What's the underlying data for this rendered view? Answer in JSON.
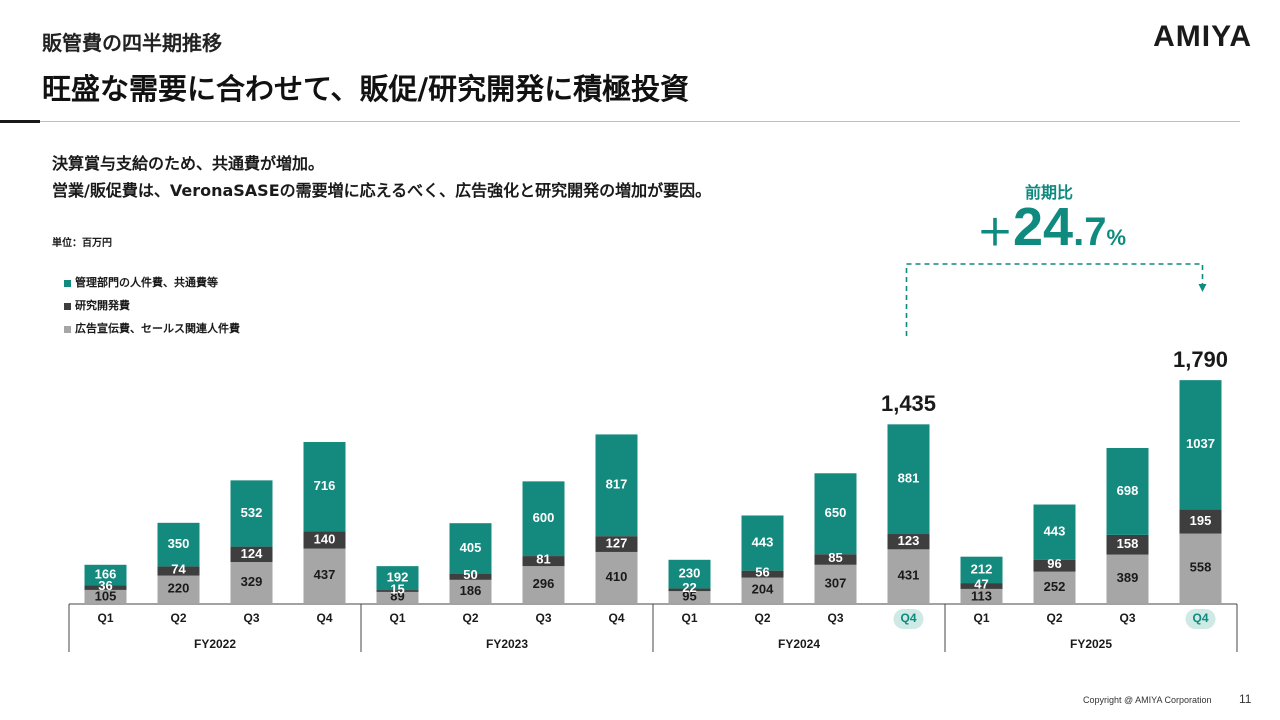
{
  "header": {
    "section_label": "販管費の四半期推移",
    "headline": "旺盛な需要に合わせて、販促/研究開発に積極投資",
    "logo": "AMIYA"
  },
  "description": {
    "line1": "決算賞与支給のため、共通費が増加。",
    "line2": "営業/販促費は、VeronaSASEの需要増に応えるべく、広告強化と研究開発の増加が要因。"
  },
  "unit": "単位：百万円",
  "growth": {
    "label": "前期比",
    "sign": "＋",
    "value_int": "24",
    "value_dec": ".7",
    "unit": "%"
  },
  "colors": {
    "admin": "#14897e",
    "rnd": "#3e3e3e",
    "ad": "#a6a6a6",
    "accent": "#0e8a7e",
    "highlight_bg": "#cfe9e5"
  },
  "chart_data": {
    "type": "bar",
    "stacked": true,
    "unit": "百万円",
    "categories": [
      "Q1",
      "Q2",
      "Q3",
      "Q4",
      "Q1",
      "Q2",
      "Q3",
      "Q4",
      "Q1",
      "Q2",
      "Q3",
      "Q4",
      "Q1",
      "Q2",
      "Q3",
      "Q4"
    ],
    "groups": [
      {
        "label": "FY2022",
        "count": 4
      },
      {
        "label": "FY2023",
        "count": 4
      },
      {
        "label": "FY2024",
        "count": 4
      },
      {
        "label": "FY2025",
        "count": 4
      }
    ],
    "series": [
      {
        "name": "広告宣伝費、セールス関連人件費",
        "color_key": "ad",
        "values": [
          105,
          220,
          329,
          437,
          89,
          186,
          296,
          410,
          95,
          204,
          307,
          431,
          113,
          252,
          389,
          558
        ]
      },
      {
        "name": "研究開発費",
        "color_key": "rnd",
        "values": [
          36,
          74,
          124,
          140,
          15,
          50,
          81,
          127,
          22,
          56,
          85,
          123,
          47,
          96,
          158,
          195
        ]
      },
      {
        "name": "管理部門の人件費、共通費等",
        "color_key": "admin",
        "values": [
          166,
          350,
          532,
          716,
          192,
          405,
          600,
          817,
          230,
          443,
          650,
          881,
          212,
          443,
          698,
          1037
        ]
      }
    ],
    "totals_shown": [
      {
        "index": 11,
        "label": "1,435"
      },
      {
        "index": 15,
        "label": "1,790"
      }
    ],
    "highlighted_indices": [
      11,
      15
    ],
    "legend": [
      {
        "name": "管理部門の人件費、共通費等",
        "color_key": "admin"
      },
      {
        "name": "研究開発費",
        "color_key": "rnd"
      },
      {
        "name": "広告宣伝費、セールス関連人件費",
        "color_key": "ad"
      }
    ],
    "legend_position": "top-left",
    "ylim": [
      0,
      1800
    ]
  },
  "footer": {
    "copyright": "Copyright @ AMIYA Corporation",
    "page": "11"
  }
}
